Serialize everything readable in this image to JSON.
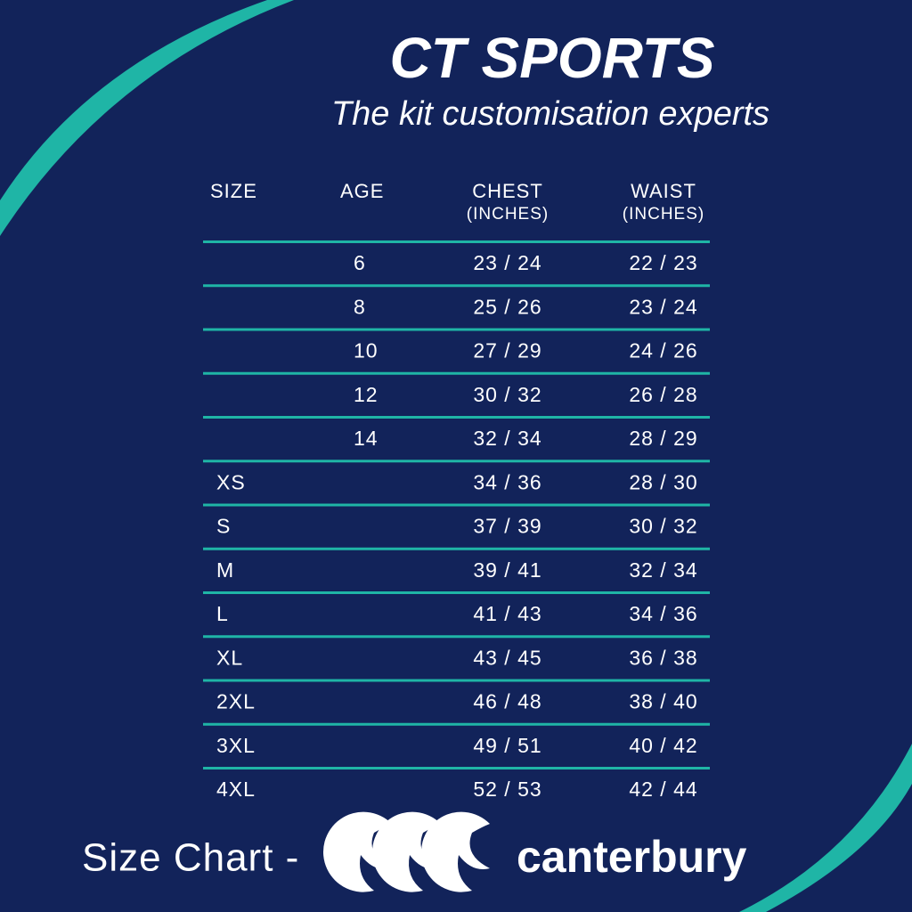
{
  "header": {
    "title": "CT SPORTS",
    "subtitle": "The kit customisation experts"
  },
  "table": {
    "columns": [
      {
        "label": "SIZE"
      },
      {
        "label": "AGE"
      },
      {
        "label": "CHEST",
        "unit": "(INCHES)"
      },
      {
        "label": "WAIST",
        "unit": "(INCHES)"
      }
    ],
    "rows": [
      [
        null,
        "6",
        "23 / 24",
        "22 / 23"
      ],
      [
        null,
        "8",
        "25 / 26",
        "23 / 24"
      ],
      [
        null,
        "10",
        "27 / 29",
        "24 / 26"
      ],
      [
        null,
        "12",
        "30 / 32",
        "26 / 28"
      ],
      [
        null,
        "14",
        "32 / 34",
        "28 / 29"
      ],
      [
        "XS",
        null,
        "34 / 36",
        "28 / 30"
      ],
      [
        "S",
        null,
        "37 / 39",
        "30 / 32"
      ],
      [
        "M",
        null,
        "39 / 41",
        "32 / 34"
      ],
      [
        "L",
        null,
        "41 / 43",
        "34 / 36"
      ],
      [
        "XL",
        null,
        "43 / 45",
        "36 / 38"
      ],
      [
        "2XL",
        null,
        "46 / 48",
        "38 / 40"
      ],
      [
        "3XL",
        null,
        "49 / 51",
        "40 / 42"
      ],
      [
        "4XL",
        null,
        "52 / 53",
        "42 / 44"
      ]
    ]
  },
  "footer": {
    "label": "Size Chart -",
    "brand": "canterbury"
  }
}
